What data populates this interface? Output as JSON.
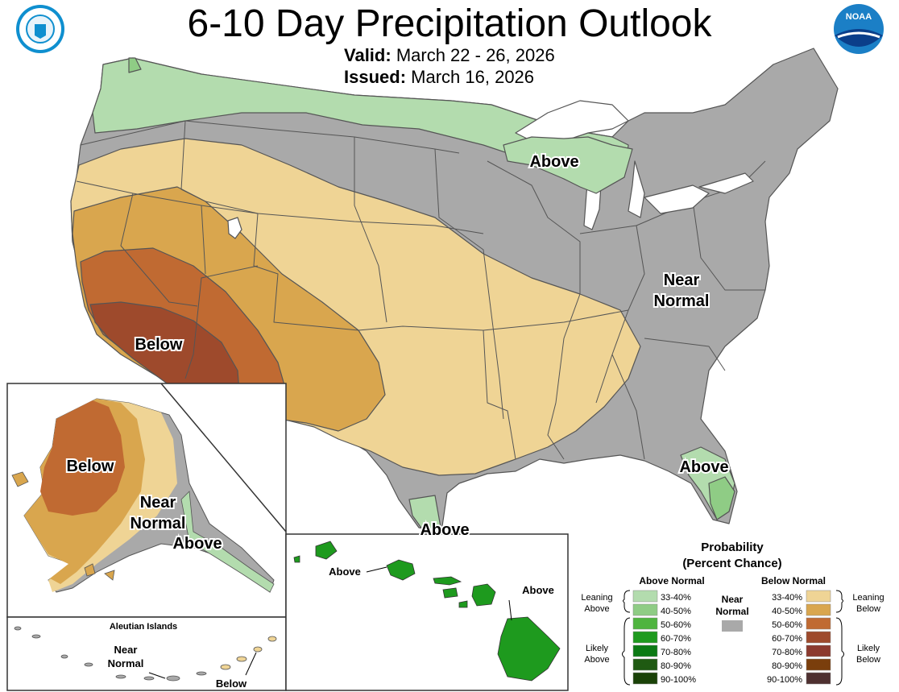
{
  "title": "6-10 Day Precipitation Outlook",
  "valid_label": "Valid:",
  "valid_value": "March 22 - 26, 2026",
  "issued_label": "Issued:",
  "issued_value": "March 16, 2026",
  "logos": {
    "left": "Department of Commerce seal",
    "right": "NOAA"
  },
  "map_labels": {
    "above_great_lakes": "Above",
    "near_normal_east": "Near",
    "near_normal_east_2": "Normal",
    "below_west": "Below",
    "above_florida": "Above",
    "above_texas": "Above"
  },
  "alaska": {
    "below": "Below",
    "near": "Near",
    "normal": "Normal",
    "above": "Above"
  },
  "aleutian": {
    "title": "Aleutian Islands",
    "near": "Near",
    "normal": "Normal",
    "below": "Below"
  },
  "hawaii": {
    "above_left": "Above",
    "above_right": "Above"
  },
  "legend": {
    "title_1": "Probability",
    "title_2": "(Percent Chance)",
    "above_header": "Above Normal",
    "below_header": "Below Normal",
    "near_label_1": "Near",
    "near_label_2": "Normal",
    "leaning_above_1": "Leaning",
    "leaning_above_2": "Above",
    "likely_above_1": "Likely",
    "likely_above_2": "Above",
    "leaning_below_1": "Leaning",
    "leaning_below_2": "Below",
    "likely_below_1": "Likely",
    "likely_below_2": "Below",
    "above_bins": [
      {
        "label": "33-40%",
        "color": "#b3dcae"
      },
      {
        "label": "40-50%",
        "color": "#8fcc85"
      },
      {
        "label": "50-60%",
        "color": "#4fb43f"
      },
      {
        "label": "60-70%",
        "color": "#1e9a1e"
      },
      {
        "label": "70-80%",
        "color": "#0b7a14"
      },
      {
        "label": "80-90%",
        "color": "#1f5a12"
      },
      {
        "label": "90-100%",
        "color": "#1a4208"
      }
    ],
    "below_bins": [
      {
        "label": "33-40%",
        "color": "#efd495"
      },
      {
        "label": "40-50%",
        "color": "#d9a64e"
      },
      {
        "label": "50-60%",
        "color": "#c06a32"
      },
      {
        "label": "60-70%",
        "color": "#9e4a2c"
      },
      {
        "label": "70-80%",
        "color": "#8c3a2e"
      },
      {
        "label": "80-90%",
        "color": "#7a3e0c"
      },
      {
        "label": "90-100%",
        "color": "#4e3030"
      }
    ],
    "near_color": "#a9a9a9"
  }
}
